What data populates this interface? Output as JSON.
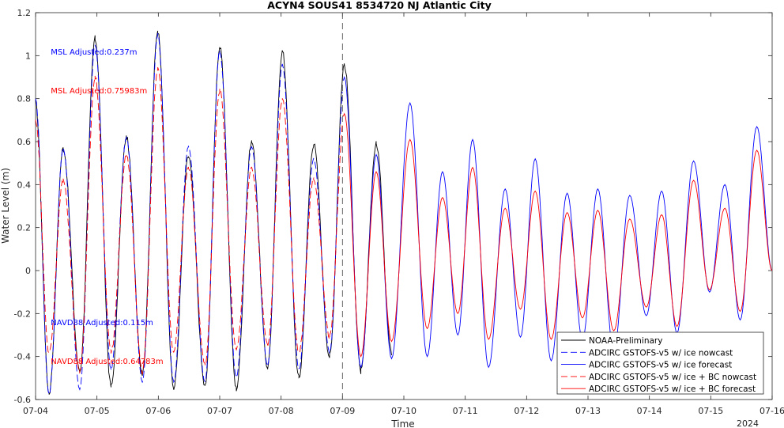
{
  "chart_data": {
    "type": "line",
    "title": "ACYN4 SOUS41 8534720 NJ Atlantic City",
    "xlabel": "Time",
    "ylabel": "Water Level (m)",
    "xlim": [
      0,
      12
    ],
    "ylim": [
      -0.6,
      1.2
    ],
    "x_ticks": [
      {
        "value": 0,
        "label": "07-04"
      },
      {
        "value": 1,
        "label": "07-05"
      },
      {
        "value": 2,
        "label": "07-06"
      },
      {
        "value": 3,
        "label": "07-07"
      },
      {
        "value": 4,
        "label": "07-08"
      },
      {
        "value": 5,
        "label": "07-09"
      },
      {
        "value": 6,
        "label": "07-10"
      },
      {
        "value": 7,
        "label": "07-11"
      },
      {
        "value": 8,
        "label": "07-12"
      },
      {
        "value": 9,
        "label": "07-13"
      },
      {
        "value": 10,
        "label": "07-14"
      },
      {
        "value": 11,
        "label": "07-15"
      },
      {
        "value": 12,
        "label": "07-16"
      }
    ],
    "year_label": "2024",
    "y_ticks": [
      -0.6,
      -0.4,
      -0.2,
      0,
      0.2,
      0.4,
      0.6,
      0.8,
      1,
      1.2
    ],
    "y_tick_labels": [
      "-0.6",
      "-0.4",
      "-0.2",
      "0",
      "0.2",
      "0.4",
      "0.6",
      "0.8",
      "1",
      "1.2"
    ],
    "nowcast_end_x": 5,
    "grid": false,
    "legend_position": "bottom-right",
    "annotations": [
      {
        "text": "MSL Adjusted:0.237m",
        "x": 0.3,
        "y": 1.02,
        "color": "#0000ff"
      },
      {
        "text": "MSL Adjusted:0.75983m",
        "x": 0.3,
        "y": 0.84,
        "color": "#ff0000"
      },
      {
        "text": "NAVD88 Adjusted:0.115m",
        "x": 0.3,
        "y": -0.24,
        "color": "#0000ff"
      },
      {
        "text": "NAVD88 Adjusted:0.64783m",
        "x": 0.3,
        "y": -0.42,
        "color": "#ff0000"
      }
    ],
    "extrema": [
      {
        "t": 0.0,
        "obs": 0.78,
        "blue": 0.8,
        "red": 0.7
      },
      {
        "t": 0.22,
        "obs": -0.57,
        "blue": -0.58,
        "red": -0.38
      },
      {
        "t": 0.45,
        "obs": 0.57,
        "blue": 0.57,
        "red": 0.42
      },
      {
        "t": 0.72,
        "obs": -0.47,
        "blue": -0.55,
        "red": -0.47
      },
      {
        "t": 0.97,
        "obs": 1.08,
        "blue": 1.05,
        "red": 0.9
      },
      {
        "t": 1.23,
        "obs": -0.54,
        "blue": -0.46,
        "red": -0.38
      },
      {
        "t": 1.48,
        "obs": 0.62,
        "blue": 0.62,
        "red": 0.54
      },
      {
        "t": 1.74,
        "obs": -0.48,
        "blue": -0.52,
        "red": -0.47
      },
      {
        "t": 1.99,
        "obs": 1.11,
        "blue": 1.1,
        "red": 0.94
      },
      {
        "t": 2.25,
        "obs": -0.55,
        "blue": -0.52,
        "red": -0.38
      },
      {
        "t": 2.49,
        "obs": 0.53,
        "blue": 0.58,
        "red": 0.48
      },
      {
        "t": 2.76,
        "obs": -0.54,
        "blue": -0.52,
        "red": -0.44
      },
      {
        "t": 3.0,
        "obs": 1.04,
        "blue": 1.02,
        "red": 0.84
      },
      {
        "t": 3.27,
        "obs": -0.55,
        "blue": -0.5,
        "red": -0.37
      },
      {
        "t": 3.52,
        "obs": 0.6,
        "blue": 0.58,
        "red": 0.48
      },
      {
        "t": 3.78,
        "obs": -0.45,
        "blue": -0.44,
        "red": -0.35
      },
      {
        "t": 4.02,
        "obs": 1.02,
        "blue": 0.96,
        "red": 0.8
      },
      {
        "t": 4.29,
        "obs": -0.5,
        "blue": -0.46,
        "red": -0.38
      },
      {
        "t": 4.53,
        "obs": 0.59,
        "blue": 0.52,
        "red": 0.43
      },
      {
        "t": 4.79,
        "obs": -0.4,
        "blue": -0.38,
        "red": -0.31
      },
      {
        "t": 5.03,
        "obs": 0.96,
        "blue": 0.9,
        "red": 0.73
      },
      {
        "t": 5.3,
        "obs": -0.47,
        "blue": -0.45,
        "red": -0.4
      },
      {
        "t": 5.55,
        "obs": 0.59,
        "blue": 0.54,
        "red": 0.46
      },
      {
        "t": 5.8,
        "obs": -0.38,
        "blue": -0.41,
        "red": -0.33
      },
      {
        "t": 6.1,
        "blue": 0.78,
        "red": 0.61
      },
      {
        "t": 6.38,
        "blue": -0.4,
        "red": -0.27
      },
      {
        "t": 6.63,
        "blue": 0.46,
        "red": 0.34
      },
      {
        "t": 6.88,
        "blue": -0.3,
        "red": -0.2
      },
      {
        "t": 7.12,
        "blue": 0.61,
        "red": 0.48
      },
      {
        "t": 7.38,
        "blue": -0.45,
        "red": -0.32
      },
      {
        "t": 7.65,
        "blue": 0.38,
        "red": 0.29
      },
      {
        "t": 7.9,
        "blue": -0.31,
        "red": -0.18
      },
      {
        "t": 8.14,
        "blue": 0.52,
        "red": 0.37
      },
      {
        "t": 8.4,
        "blue": -0.42,
        "red": -0.32
      },
      {
        "t": 8.66,
        "blue": 0.36,
        "red": 0.27
      },
      {
        "t": 8.91,
        "blue": -0.32,
        "red": -0.22
      },
      {
        "t": 9.16,
        "blue": 0.38,
        "red": 0.28
      },
      {
        "t": 9.42,
        "blue": -0.38,
        "red": -0.28
      },
      {
        "t": 9.68,
        "blue": 0.35,
        "red": 0.24
      },
      {
        "t": 9.95,
        "blue": -0.21,
        "red": -0.17
      },
      {
        "t": 10.2,
        "blue": 0.37,
        "red": 0.26
      },
      {
        "t": 10.45,
        "blue": -0.29,
        "red": -0.26
      },
      {
        "t": 10.72,
        "blue": 0.51,
        "red": 0.42
      },
      {
        "t": 10.98,
        "blue": -0.1,
        "red": -0.09
      },
      {
        "t": 11.23,
        "blue": 0.4,
        "red": 0.29
      },
      {
        "t": 11.48,
        "blue": -0.23,
        "red": -0.19
      },
      {
        "t": 11.75,
        "blue": 0.67,
        "red": 0.56
      },
      {
        "t": 12.0,
        "blue": 0.0,
        "red": 0.0
      }
    ],
    "series": [
      {
        "name": "NOAA-Preliminary",
        "color": "#000000",
        "dash": "solid",
        "segment": "observed"
      },
      {
        "name": "ADCIRC GSTOFS-v5  w/ ice nowcast",
        "color": "#0000ff",
        "dash": "dashed",
        "segment": "nowcast",
        "field": "blue"
      },
      {
        "name": "ADCIRC GSTOFS-v5  w/ ice forecast",
        "color": "#0000ff",
        "dash": "solid",
        "segment": "forecast",
        "field": "blue"
      },
      {
        "name": "ADCIRC GSTOFS-v5  w/ ice + BC nowcast",
        "color": "#ff0000",
        "dash": "dashed",
        "segment": "nowcast",
        "field": "red"
      },
      {
        "name": "ADCIRC GSTOFS-v5  w/ ice + BC forecast",
        "color": "#ff0000",
        "dash": "solid",
        "segment": "forecast",
        "field": "red"
      }
    ]
  }
}
